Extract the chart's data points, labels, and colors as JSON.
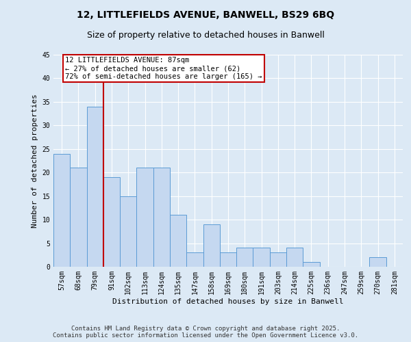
{
  "title_line1": "12, LITTLEFIELDS AVENUE, BANWELL, BS29 6BQ",
  "title_line2": "Size of property relative to detached houses in Banwell",
  "xlabel": "Distribution of detached houses by size in Banwell",
  "ylabel": "Number of detached properties",
  "categories": [
    "57sqm",
    "68sqm",
    "79sqm",
    "91sqm",
    "102sqm",
    "113sqm",
    "124sqm",
    "135sqm",
    "147sqm",
    "158sqm",
    "169sqm",
    "180sqm",
    "191sqm",
    "203sqm",
    "214sqm",
    "225sqm",
    "236sqm",
    "247sqm",
    "259sqm",
    "270sqm",
    "281sqm"
  ],
  "values": [
    24,
    21,
    34,
    19,
    15,
    21,
    21,
    11,
    3,
    9,
    3,
    4,
    4,
    3,
    4,
    1,
    0,
    0,
    0,
    2,
    0
  ],
  "bar_color": "#c5d8f0",
  "bar_edge_color": "#5b9bd5",
  "vline_color": "#c00000",
  "annotation_text": "12 LITTLEFIELDS AVENUE: 87sqm\n← 27% of detached houses are smaller (62)\n72% of semi-detached houses are larger (165) →",
  "annotation_box_color": "#ffffff",
  "annotation_box_edge": "#c00000",
  "ylim": [
    0,
    45
  ],
  "yticks": [
    0,
    5,
    10,
    15,
    20,
    25,
    30,
    35,
    40,
    45
  ],
  "background_color": "#dce9f5",
  "footer_text": "Contains HM Land Registry data © Crown copyright and database right 2025.\nContains public sector information licensed under the Open Government Licence v3.0.",
  "title_fontsize": 10,
  "subtitle_fontsize": 9,
  "axis_label_fontsize": 8,
  "tick_fontsize": 7,
  "annotation_fontsize": 7.5,
  "footer_fontsize": 6.5
}
